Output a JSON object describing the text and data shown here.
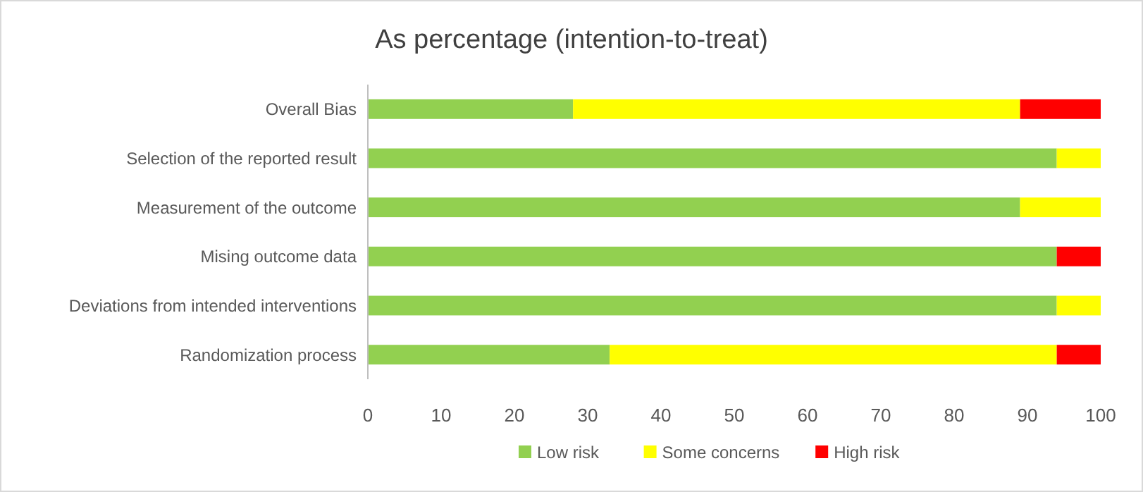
{
  "chart_data": {
    "type": "bar",
    "orientation": "horizontal",
    "stacked": true,
    "title": "As percentage (intention-to-treat)",
    "categories": [
      "Overall Bias",
      "Selection of the reported result",
      "Measurement of the outcome",
      "Mising outcome data",
      "Deviations from intended interventions",
      "Randomization process"
    ],
    "series": [
      {
        "name": "Low risk",
        "color": "#92d050",
        "values": [
          28,
          94,
          89,
          94,
          94,
          33
        ]
      },
      {
        "name": "Some concerns",
        "color": "#ffff00",
        "values": [
          61,
          6,
          11,
          0,
          6,
          61
        ]
      },
      {
        "name": "High risk",
        "color": "#ff0000",
        "values": [
          11,
          0,
          0,
          6,
          0,
          6
        ]
      }
    ],
    "xlim": [
      0,
      100
    ],
    "xticks": [
      0,
      10,
      20,
      30,
      40,
      50,
      60,
      70,
      80,
      90,
      100
    ],
    "grid": false,
    "legend": "bottom"
  }
}
